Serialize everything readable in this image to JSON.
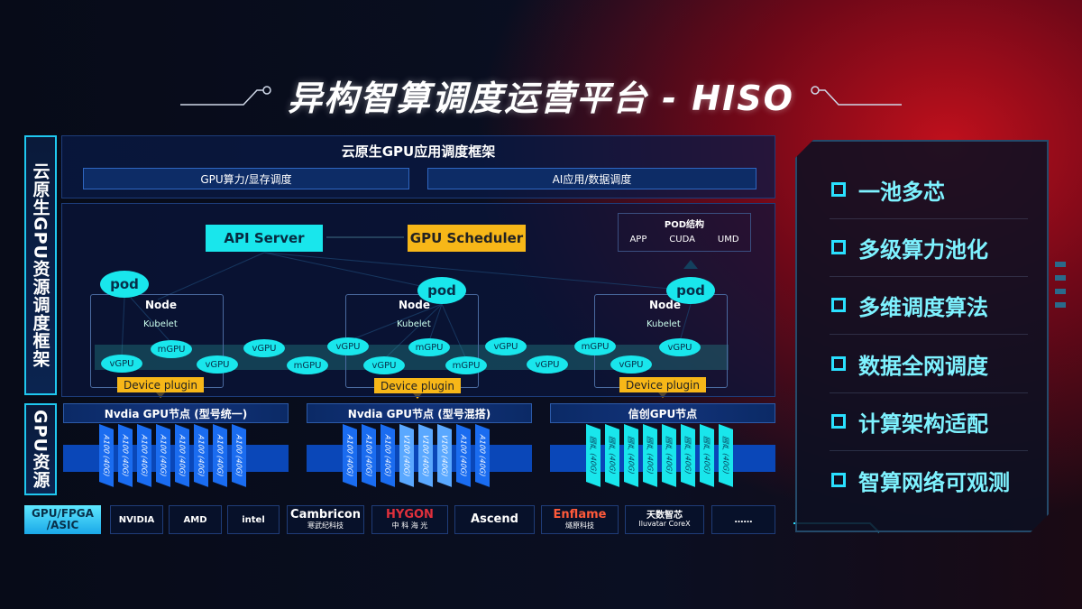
{
  "title": "异构智算调度运营平台 - HISO",
  "left_labels": {
    "framework": "云原生GPU资源调度框架",
    "resources": "GPU资源"
  },
  "framework": {
    "title": "云原生GPU应用调度框架",
    "sub": [
      "GPU算力/显存调度",
      "AI应用/数据调度"
    ]
  },
  "diagram": {
    "api_server": "API Server",
    "gpu_scheduler": "GPU Scheduler",
    "pod_structure": {
      "title": "POD结构",
      "items": [
        "APP",
        "CUDA",
        "UMD"
      ]
    },
    "pod": "pod",
    "node": "Node",
    "kubelet": "Kubelet",
    "device_plugin": "Device plugin",
    "units": [
      "vGPU",
      "mGPU",
      "vGPU",
      "vGPU",
      "mGPU",
      "vGPU",
      "vGPU",
      "mGPU",
      "mGPU",
      "vGPU",
      "vGPU",
      "mGPU",
      "vGPU",
      "vGPU"
    ]
  },
  "gpu_nodes": [
    {
      "title": "Nvdia GPU节点 (型号统一)",
      "cards": [
        "A100 (40G)",
        "A100 (40G)",
        "A100 (40G)",
        "A100 (40G)",
        "A100 (40G)",
        "A100 (40G)",
        "A100 (40G)",
        "A100 (40G)"
      ]
    },
    {
      "title": "Nvdia GPU节点 (型号混搭)",
      "cards": [
        "A100 (40G)",
        "A100 (40G)",
        "A100 (40G)",
        "V100 (40G)",
        "V100 (40G)",
        "V100 (40G)",
        "A100 (40G)",
        "A100 (40G)"
      ]
    },
    {
      "title": "信创GPU节点",
      "cards": [
        "国产 (40G)",
        "国产 (40G)",
        "国产 (40G)",
        "国产 (40G)",
        "国产 (40G)",
        "国产 (40G)",
        "国产 (40G)",
        "国产 (40G)"
      ]
    }
  ],
  "vendors": {
    "label": "GPU/FPGA /ASIC",
    "items": [
      [
        "NVIDIA",
        ""
      ],
      [
        "AMD",
        ""
      ],
      [
        "intel",
        ""
      ],
      [
        "Cambricon",
        "寒武纪科技"
      ],
      [
        "HYGON",
        "中 科 海 光"
      ],
      [
        "Ascend",
        ""
      ],
      [
        "Enflame",
        "燧原科技"
      ],
      [
        "天数智芯",
        "Iluvatar CoreX"
      ],
      [
        "……",
        ""
      ]
    ]
  },
  "features": [
    "一池多芯",
    "多级算力池化",
    "多维调度算法",
    "数据全网调度",
    "计算架构适配",
    "智算网络可观测"
  ],
  "colors": {
    "cyan": "#19e6ec",
    "orange": "#f7b718",
    "blue": "#0a47b8",
    "red_glow": "#c0101c"
  }
}
